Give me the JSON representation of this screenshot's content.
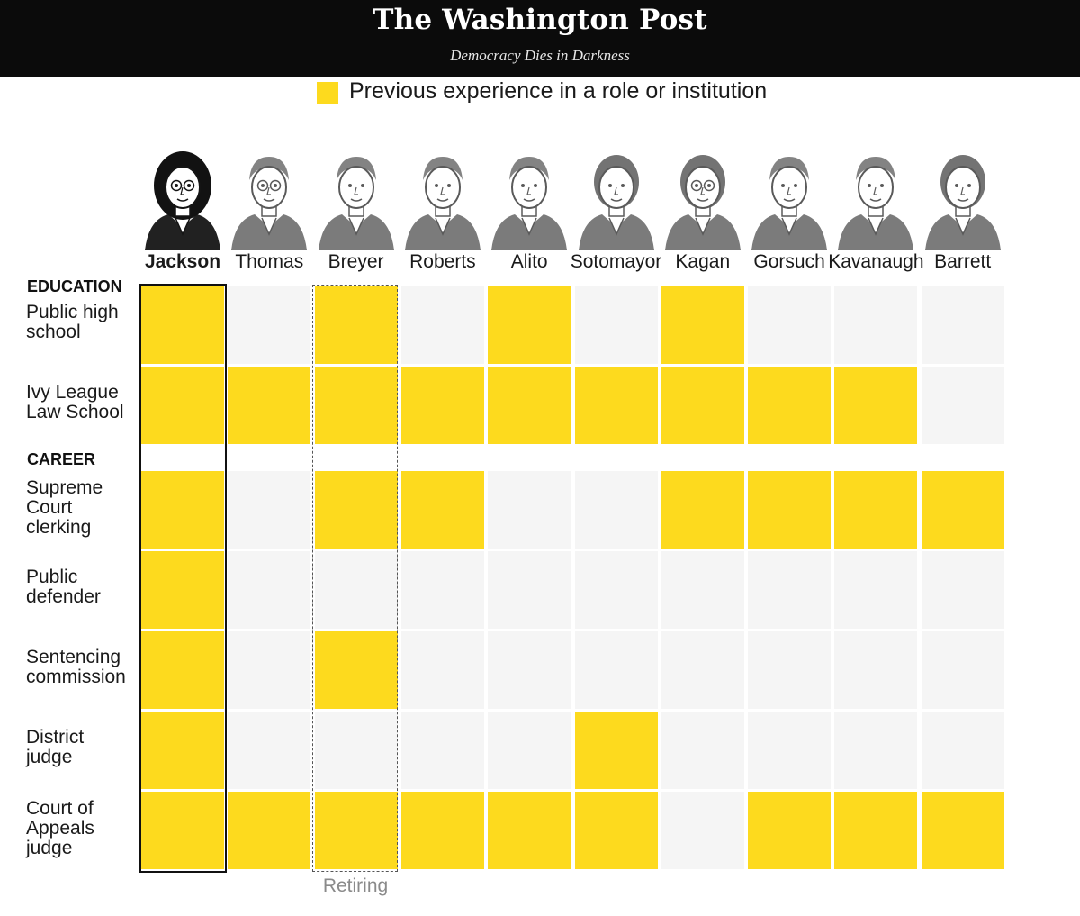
{
  "masthead": {
    "title": "The Washington Post",
    "tagline": "Democracy Dies in Darkness"
  },
  "legend": {
    "label": "Previous experience in a role or institution",
    "color": "#FDDA1E"
  },
  "colors": {
    "filled": "#FDDA1E",
    "empty": "#F5F5F5",
    "frame": "#111111",
    "portrait_ink": "#5a5a5a"
  },
  "annotation": {
    "retiring": "Retiring"
  },
  "chart_data": {
    "type": "heatmap",
    "legend_placement": "top",
    "justices": [
      "Jackson",
      "Thomas",
      "Breyer",
      "Roberts",
      "Alito",
      "Sotomayor",
      "Kagan",
      "Gorsuch",
      "Kavanaugh",
      "Barrett"
    ],
    "featured_justice": "Jackson",
    "retiring_justice": "Breyer",
    "sections": [
      {
        "label": "EDUCATION",
        "rows": [
          {
            "label": "Public high\nschool",
            "values": [
              1,
              0,
              1,
              0,
              1,
              0,
              1,
              0,
              0,
              0
            ]
          },
          {
            "label": "Ivy League\nLaw School",
            "values": [
              1,
              1,
              1,
              1,
              1,
              1,
              1,
              1,
              1,
              0
            ]
          }
        ]
      },
      {
        "label": "CAREER",
        "rows": [
          {
            "label": "Supreme\nCourt\nclerking",
            "values": [
              1,
              0,
              1,
              1,
              0,
              0,
              1,
              1,
              1,
              1
            ]
          },
          {
            "label": "Public\ndefender",
            "values": [
              1,
              0,
              0,
              0,
              0,
              0,
              0,
              0,
              0,
              0
            ]
          },
          {
            "label": "Sentencing\ncommission",
            "values": [
              1,
              0,
              1,
              0,
              0,
              0,
              0,
              0,
              0,
              0
            ]
          },
          {
            "label": "District\njudge",
            "values": [
              1,
              0,
              0,
              0,
              0,
              1,
              0,
              0,
              0,
              0
            ]
          },
          {
            "label": "Court of\nAppeals\njudge",
            "values": [
              1,
              1,
              1,
              1,
              1,
              1,
              0,
              1,
              1,
              1
            ]
          }
        ]
      }
    ]
  }
}
